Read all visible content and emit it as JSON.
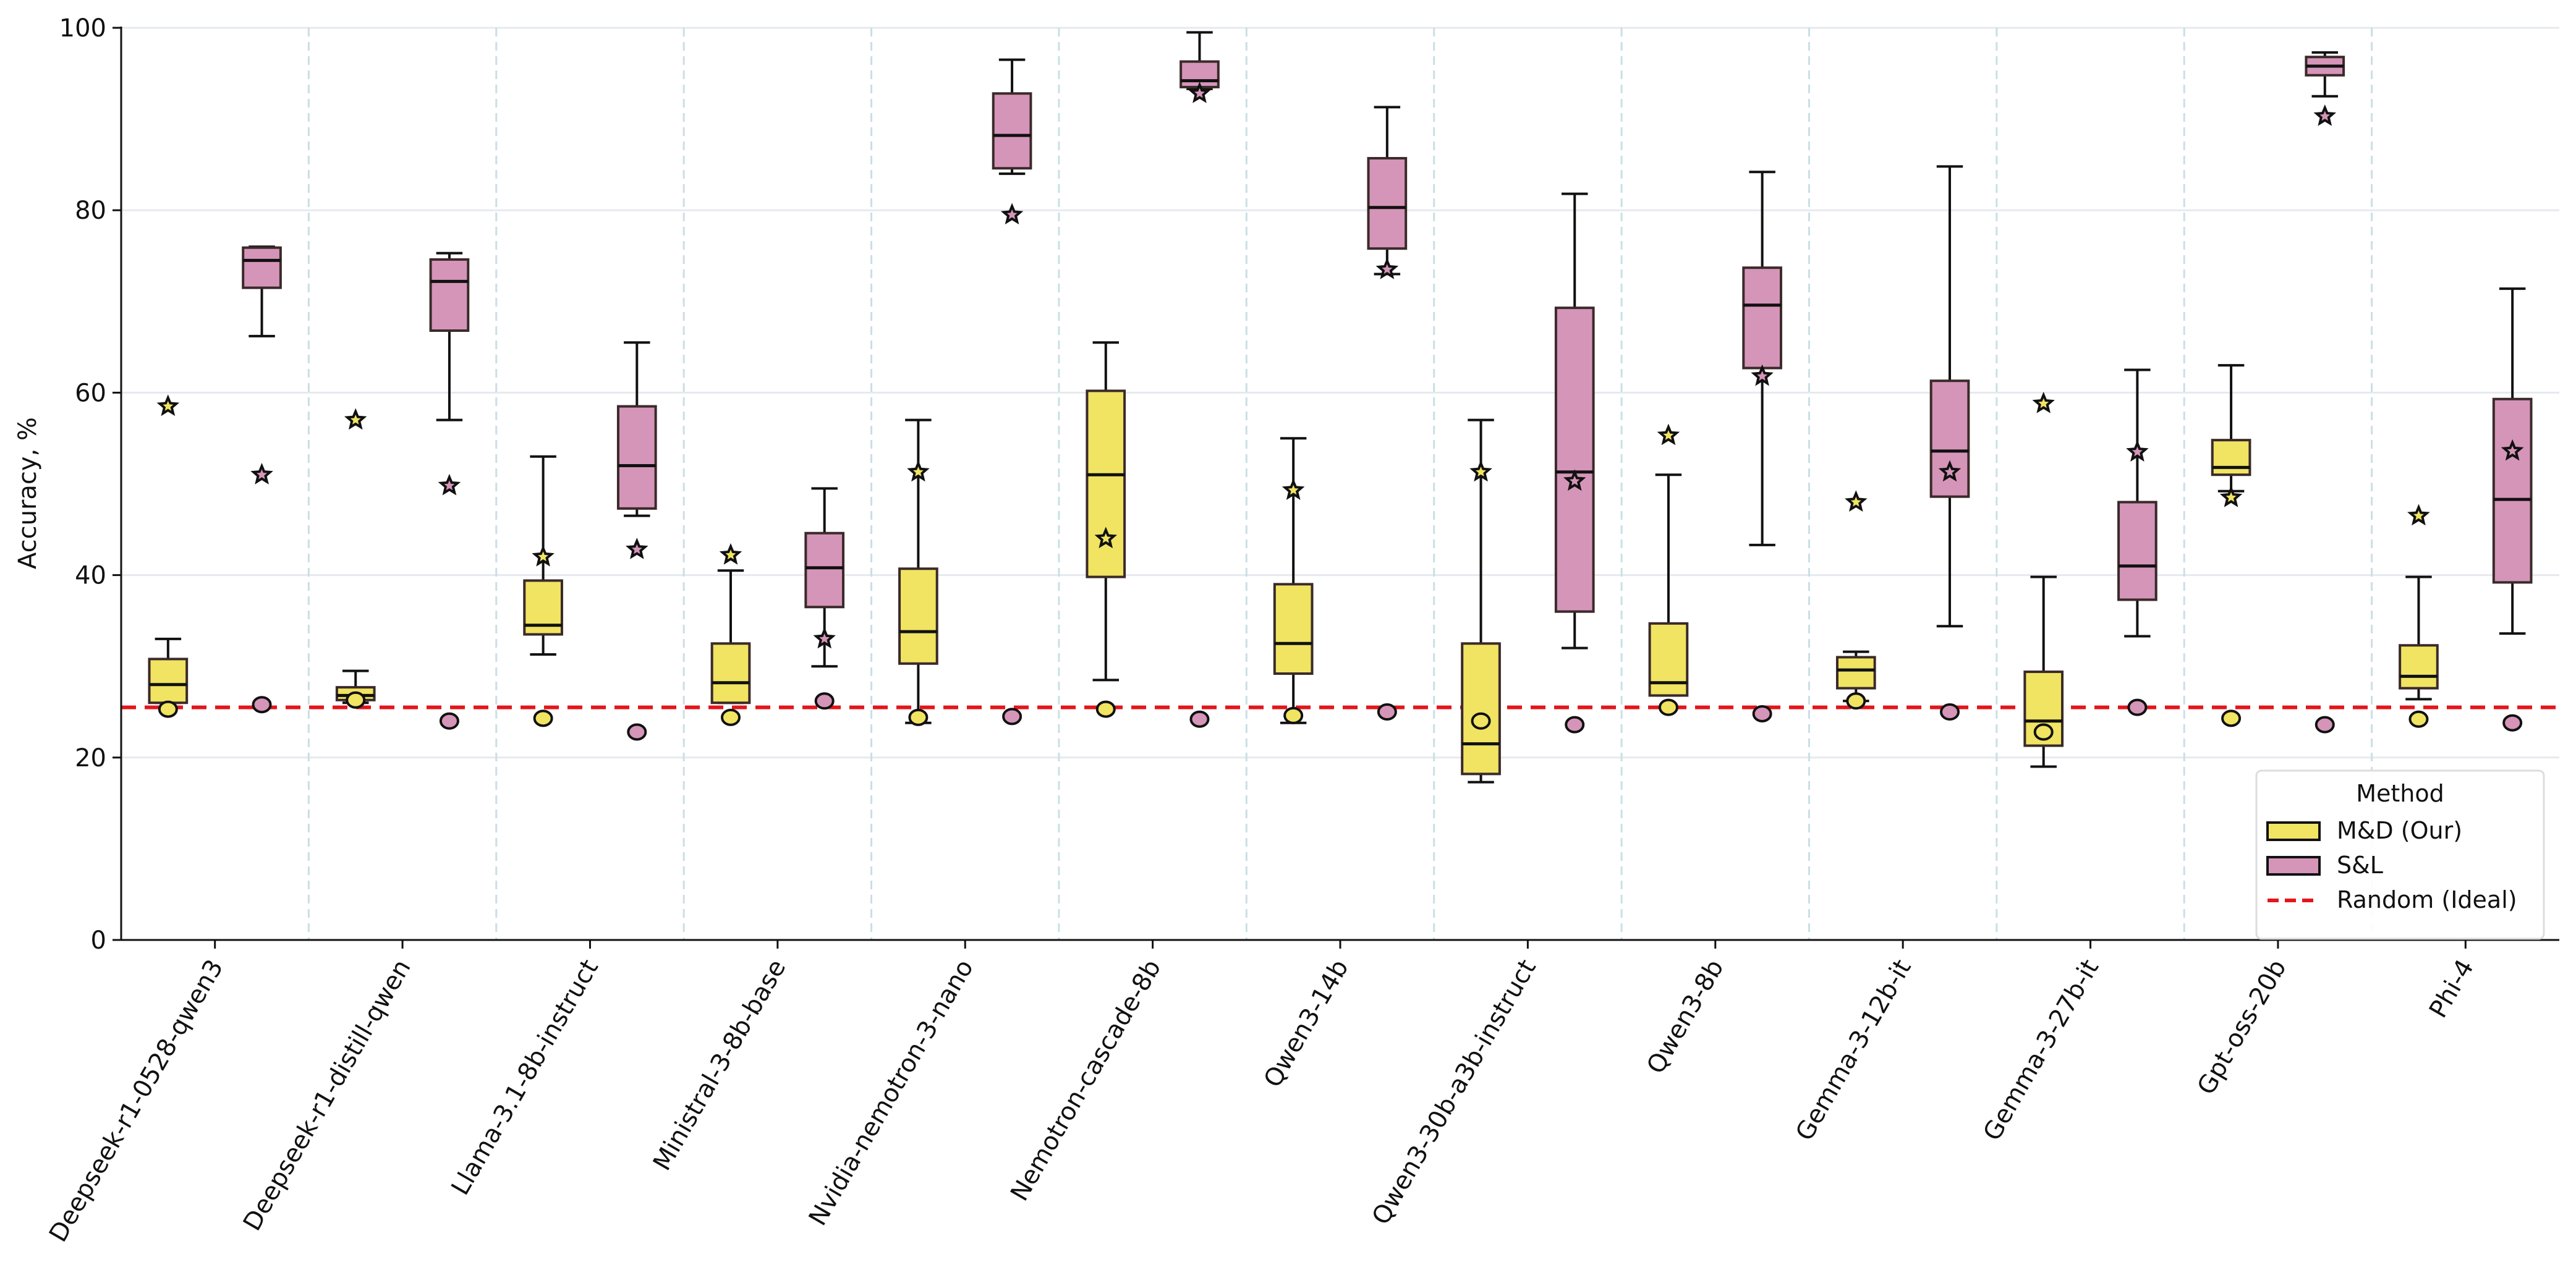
{
  "chart_data": {
    "type": "box",
    "title": "",
    "xlabel": "",
    "ylabel": "Accuracy, %",
    "ylim": [
      0,
      100
    ],
    "yticks": [
      0,
      20,
      40,
      60,
      80,
      100
    ],
    "ytick_labels": [
      "0",
      "20",
      "40",
      "60",
      "80",
      "100"
    ],
    "grid": true,
    "legend_title": "Method",
    "legend_position": "bottom-right",
    "random_baseline": 25.5,
    "categories": [
      "Deepseek-r1-0528-qwen3",
      "Deepseek-r1-distill-qwen",
      "Llama-3.1-8b-instruct",
      "Ministral-3-8b-base",
      "Nvidia-nemotron-3-nano",
      "Nemotron-cascade-8b",
      "Qwen3-14b",
      "Qwen3-30b-a3b-instruct",
      "Qwen3-8b",
      "Gemma-3-12b-it",
      "Gemma-3-27b-it",
      "Gpt-oss-20b",
      "Phi-4"
    ],
    "series": [
      {
        "name": "M&D (Our)",
        "color": "#f0e462",
        "boxes": [
          {
            "whislo": 26.0,
            "q1": 26.0,
            "med": 28.0,
            "q3": 30.8,
            "whishi": 33.0,
            "star": 58.5,
            "circle": 25.3
          },
          {
            "whislo": 26.0,
            "q1": 26.3,
            "med": 26.8,
            "q3": 27.7,
            "whishi": 29.5,
            "star": 57.0,
            "circle": 26.3
          },
          {
            "whislo": 31.3,
            "q1": 33.5,
            "med": 34.5,
            "q3": 39.4,
            "whishi": 53.0,
            "star": 42.0,
            "circle": 24.3
          },
          {
            "whislo": 26.0,
            "q1": 26.0,
            "med": 28.2,
            "q3": 32.5,
            "whishi": 40.5,
            "star": 42.2,
            "circle": 24.4
          },
          {
            "whislo": 23.8,
            "q1": 30.3,
            "med": 33.8,
            "q3": 40.7,
            "whishi": 57.0,
            "star": 51.3,
            "circle": 24.4
          },
          {
            "whislo": 28.5,
            "q1": 39.8,
            "med": 51.0,
            "q3": 60.2,
            "whishi": 65.5,
            "star": 44.0,
            "circle": 25.3
          },
          {
            "whislo": 23.8,
            "q1": 29.2,
            "med": 32.5,
            "q3": 39.0,
            "whishi": 55.0,
            "star": 49.3,
            "circle": 24.6
          },
          {
            "whislo": 17.3,
            "q1": 18.2,
            "med": 21.5,
            "q3": 32.5,
            "whishi": 57.0,
            "star": 51.3,
            "circle": 24.0
          },
          {
            "whislo": 26.8,
            "q1": 26.8,
            "med": 28.2,
            "q3": 34.7,
            "whishi": 51.0,
            "star": 55.3,
            "circle": 25.5
          },
          {
            "whislo": 26.2,
            "q1": 27.6,
            "med": 29.6,
            "q3": 31.0,
            "whishi": 31.6,
            "star": 48.0,
            "circle": 26.2
          },
          {
            "whislo": 19.0,
            "q1": 21.3,
            "med": 24.0,
            "q3": 29.4,
            "whishi": 39.8,
            "star": 58.8,
            "circle": 22.8
          },
          {
            "whislo": 49.2,
            "q1": 51.0,
            "med": 51.8,
            "q3": 54.8,
            "whishi": 63.0,
            "star": 48.5,
            "circle": 24.3
          },
          {
            "whislo": 26.4,
            "q1": 27.6,
            "med": 28.9,
            "q3": 32.3,
            "whishi": 39.8,
            "star": 46.5,
            "circle": 24.2
          }
        ]
      },
      {
        "name": "S&L",
        "color": "#d595b8",
        "boxes": [
          {
            "whislo": 66.2,
            "q1": 71.5,
            "med": 74.5,
            "q3": 75.9,
            "whishi": 76.0,
            "star": 51.0,
            "circle": 25.8
          },
          {
            "whislo": 57.0,
            "q1": 66.8,
            "med": 72.2,
            "q3": 74.6,
            "whishi": 75.3,
            "star": 49.8,
            "circle": 24.0
          },
          {
            "whislo": 46.5,
            "q1": 47.3,
            "med": 52.0,
            "q3": 58.5,
            "whishi": 65.5,
            "star": 42.8,
            "circle": 22.8
          },
          {
            "whislo": 30.0,
            "q1": 36.5,
            "med": 40.8,
            "q3": 44.6,
            "whishi": 49.5,
            "star": 33.0,
            "circle": 26.2
          },
          {
            "whislo": 84.0,
            "q1": 84.6,
            "med": 88.2,
            "q3": 92.8,
            "whishi": 96.5,
            "star": 79.5,
            "circle": 24.5
          },
          {
            "whislo": 93.3,
            "q1": 93.5,
            "med": 94.2,
            "q3": 96.3,
            "whishi": 99.5,
            "star": 92.8,
            "circle": 24.2
          },
          {
            "whislo": 73.0,
            "q1": 75.8,
            "med": 80.3,
            "q3": 85.7,
            "whishi": 91.3,
            "star": 73.5,
            "circle": 25.0
          },
          {
            "whislo": 32.0,
            "q1": 36.0,
            "med": 51.3,
            "q3": 69.3,
            "whishi": 81.8,
            "star": 50.3,
            "circle": 23.6
          },
          {
            "whislo": 43.3,
            "q1": 62.7,
            "med": 69.6,
            "q3": 73.7,
            "whishi": 84.2,
            "star": 61.8,
            "circle": 24.8
          },
          {
            "whislo": 34.4,
            "q1": 48.6,
            "med": 53.6,
            "q3": 61.3,
            "whishi": 84.8,
            "star": 51.3,
            "circle": 25.0
          },
          {
            "whislo": 33.3,
            "q1": 37.3,
            "med": 41.0,
            "q3": 48.0,
            "whishi": 62.5,
            "star": 53.5,
            "circle": 25.5
          },
          {
            "whislo": 92.5,
            "q1": 94.8,
            "med": 95.8,
            "q3": 96.8,
            "whishi": 97.3,
            "star": 90.3,
            "circle": 23.6
          },
          {
            "whislo": 33.6,
            "q1": 39.2,
            "med": 48.3,
            "q3": 59.3,
            "whishi": 71.4,
            "star": 53.6,
            "circle": 23.8
          }
        ]
      }
    ],
    "legend": [
      {
        "label": "M&D (Our)",
        "kind": "box",
        "color": "#f0e462"
      },
      {
        "label": "S&L",
        "kind": "box",
        "color": "#d595b8"
      },
      {
        "label": "Random (Ideal)",
        "kind": "dashed-line",
        "color": "#e3161b"
      }
    ]
  }
}
